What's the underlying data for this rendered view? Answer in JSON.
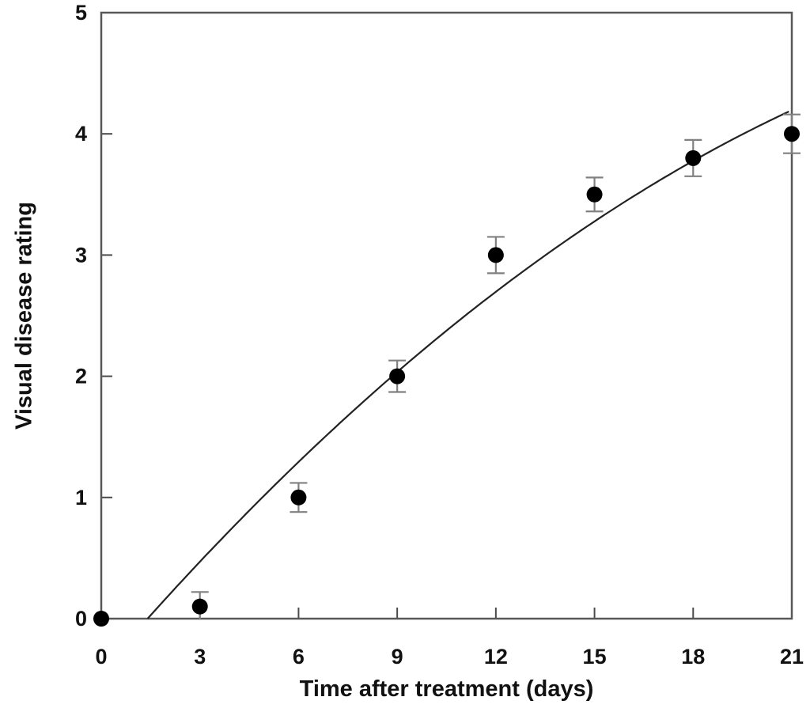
{
  "chart_data": {
    "type": "scatter",
    "title": "",
    "xlabel": "Time after treatment (days)",
    "ylabel": "Visual disease rating",
    "xlim": [
      0,
      21
    ],
    "ylim": [
      0,
      5
    ],
    "x_ticks": [
      0,
      3,
      6,
      9,
      12,
      15,
      18,
      21
    ],
    "y_ticks": [
      0,
      1,
      2,
      3,
      4,
      5
    ],
    "grid": false,
    "legend": false,
    "series": [
      {
        "marker": "filled-circle",
        "points": [
          {
            "x": 0,
            "y": 0.0,
            "err": 0.0
          },
          {
            "x": 3,
            "y": 0.1,
            "err": 0.12
          },
          {
            "x": 6,
            "y": 1.0,
            "err": 0.12
          },
          {
            "x": 9,
            "y": 2.0,
            "err": 0.13
          },
          {
            "x": 12,
            "y": 3.0,
            "err": 0.15
          },
          {
            "x": 15,
            "y": 3.5,
            "err": 0.14
          },
          {
            "x": 18,
            "y": 3.8,
            "err": 0.15
          },
          {
            "x": 21,
            "y": 4.0,
            "err": 0.16
          }
        ]
      }
    ],
    "fit_curve": {
      "type": "quadratic",
      "a": -0.0045,
      "b": 0.315,
      "c": -0.435,
      "x_start": 1.41,
      "x_end": 21
    }
  },
  "colors": {
    "background": "#ffffff",
    "axis": "#585858",
    "tick": "#4a4a4a",
    "text": "#111111",
    "marker": "#000000",
    "curve": "#222222",
    "errorbar": "#808080"
  }
}
